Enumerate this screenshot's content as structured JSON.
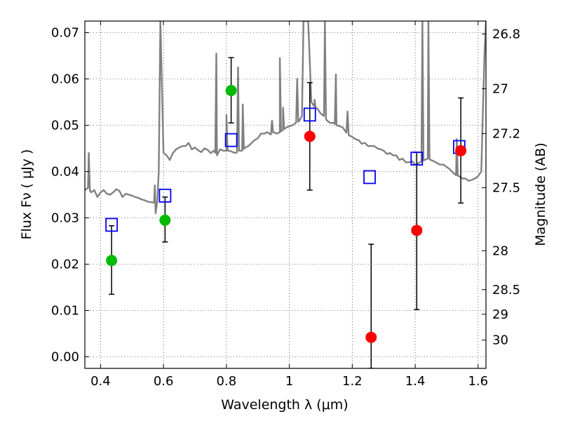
{
  "chart_data": {
    "type": "scatter",
    "xlabel": "Wavelength  λ (μm)",
    "ylabel": "Flux  Fν  ( μJy )",
    "ylabel_right": "Magnitude (AB)",
    "xlim": [
      0.35,
      1.625
    ],
    "ylim": [
      -0.0025,
      0.0725
    ],
    "grid": true,
    "x_ticks": [
      0.4,
      0.6,
      0.8,
      1.0,
      1.2,
      1.4,
      1.6
    ],
    "x_tick_labels": [
      "0.4",
      "0.6",
      "0.8",
      "1",
      "1.2",
      "1.4",
      "1.6"
    ],
    "y_ticks": [
      0.0,
      0.01,
      0.02,
      0.03,
      0.04,
      0.05,
      0.06,
      0.07
    ],
    "y_tick_labels": [
      "0.00",
      "0.01",
      "0.02",
      "0.03",
      "0.04",
      "0.05",
      "0.06",
      "0.07"
    ],
    "right_ticks": [
      {
        "label": "26.8",
        "flux": 0.0697
      },
      {
        "label": "27",
        "flux": 0.0579
      },
      {
        "label": "27.2",
        "flux": 0.0482
      },
      {
        "label": "27.5",
        "flux": 0.0365
      },
      {
        "label": "28",
        "flux": 0.0229
      },
      {
        "label": "28.5",
        "flux": 0.0145
      },
      {
        "label": "29",
        "flux": 0.0092
      },
      {
        "label": "30",
        "flux": 0.0036
      }
    ],
    "series": [
      {
        "kind": "spectrum",
        "color": "#808080",
        "x": [
          0.35,
          0.36,
          0.37,
          0.38,
          0.39,
          0.4,
          0.41,
          0.42,
          0.43,
          0.44,
          0.45,
          0.46,
          0.47,
          0.48,
          0.49,
          0.5,
          0.51,
          0.52,
          0.53,
          0.54,
          0.55,
          0.56,
          0.57,
          0.575,
          0.58,
          0.585,
          0.59,
          0.6,
          0.61,
          0.62,
          0.63,
          0.64,
          0.65,
          0.66,
          0.67,
          0.68,
          0.69,
          0.7,
          0.71,
          0.72,
          0.73,
          0.74,
          0.75,
          0.76,
          0.77,
          0.78,
          0.79,
          0.8,
          0.81,
          0.82,
          0.83,
          0.84,
          0.85,
          0.86,
          0.87,
          0.88,
          0.89,
          0.9,
          0.91,
          0.92,
          0.93,
          0.94,
          0.95,
          0.96,
          0.97,
          0.98,
          0.99,
          1.0,
          1.01,
          1.02,
          1.03,
          1.04,
          1.045,
          1.05,
          1.055,
          1.06,
          1.07,
          1.08,
          1.09,
          1.1,
          1.11,
          1.12,
          1.13,
          1.14,
          1.15,
          1.16,
          1.17,
          1.18,
          1.19,
          1.2,
          1.21,
          1.22,
          1.23,
          1.24,
          1.25,
          1.26,
          1.27,
          1.28,
          1.29,
          1.3,
          1.31,
          1.32,
          1.33,
          1.34,
          1.35,
          1.36,
          1.37,
          1.38,
          1.39,
          1.4,
          1.41,
          1.42,
          1.43,
          1.44,
          1.45,
          1.46,
          1.47,
          1.48,
          1.49,
          1.5,
          1.51,
          1.52,
          1.53,
          1.54,
          1.55,
          1.56,
          1.57,
          1.58,
          1.59,
          1.6,
          1.61,
          1.62,
          1.625
        ],
        "y": [
          0.036,
          0.0365,
          0.0355,
          0.036,
          0.0345,
          0.0355,
          0.036,
          0.0352,
          0.035,
          0.0355,
          0.0362,
          0.0358,
          0.0345,
          0.0352,
          0.035,
          0.0348,
          0.0345,
          0.0343,
          0.034,
          0.0338,
          0.0335,
          0.0334,
          0.0333,
          0.031,
          0.0335,
          0.04,
          0.0725,
          0.044,
          0.0435,
          0.0425,
          0.044,
          0.0448,
          0.0452,
          0.0455,
          0.0455,
          0.0462,
          0.0448,
          0.0452,
          0.0446,
          0.0442,
          0.045,
          0.0447,
          0.044,
          0.0445,
          0.0435,
          0.0448,
          0.0445,
          0.0445,
          0.0445,
          0.0442,
          0.044,
          0.0445,
          0.0445,
          0.0452,
          0.0455,
          0.0462,
          0.0468,
          0.0472,
          0.0482,
          0.0482,
          0.0485,
          0.048,
          0.0485,
          0.0482,
          0.0485,
          0.049,
          0.0495,
          0.0498,
          0.05,
          0.0505,
          0.0508,
          0.052,
          0.0725,
          0.0725,
          0.0725,
          0.0725,
          0.055,
          0.054,
          0.0535,
          0.0525,
          0.052,
          0.051,
          0.0505,
          0.0505,
          0.05,
          0.0498,
          0.0495,
          0.0485,
          0.0478,
          0.0475,
          0.047,
          0.0468,
          0.046,
          0.0462,
          0.0455,
          0.0455,
          0.0455,
          0.045,
          0.0448,
          0.0445,
          0.0438,
          0.044,
          0.0435,
          0.0435,
          0.0425,
          0.0428,
          0.042,
          0.042,
          0.0422,
          0.0415,
          0.0418,
          0.0422,
          0.0425,
          0.0428,
          0.0425,
          0.0422,
          0.0418,
          0.0415,
          0.0415,
          0.041,
          0.0405,
          0.0398,
          0.0392,
          0.039,
          0.0385,
          0.0385,
          0.038,
          0.0382,
          0.0385,
          0.039,
          0.04,
          0.065,
          0.0725
        ],
        "peaks": [
          [
            0.3625,
            0.044
          ],
          [
            0.5725,
            0.037
          ],
          [
            0.768,
            0.0655
          ],
          [
            0.8,
            0.0522
          ],
          [
            0.837,
            0.0625
          ],
          [
            0.852,
            0.0545
          ],
          [
            0.945,
            0.051
          ],
          [
            0.97,
            0.0645
          ],
          [
            0.98,
            0.0538
          ],
          [
            1.025,
            0.06
          ],
          [
            1.08,
            0.0555
          ],
          [
            1.113,
            0.0725
          ],
          [
            1.148,
            0.061
          ],
          [
            1.185,
            0.053
          ],
          [
            1.423,
            0.0725
          ],
          [
            1.442,
            0.0725
          ],
          [
            1.532,
            0.047
          ]
        ]
      },
      {
        "name": "",
        "kind": "model",
        "marker": "open-square",
        "color": "#0000ff",
        "x": [
          0.435,
          0.605,
          0.815,
          1.065,
          1.255,
          1.405,
          1.54
        ],
        "y": [
          0.0285,
          0.0348,
          0.0468,
          0.0523,
          0.0388,
          0.0428,
          0.0453
        ]
      },
      {
        "name": "",
        "kind": "measured",
        "marker": "filled-circle",
        "color": "#00bb00",
        "x": [
          0.435,
          0.605,
          0.815
        ],
        "y": [
          0.0208,
          0.0295,
          0.0575
        ],
        "yerr": [
          [
            0.0135,
            0.0283
          ],
          [
            0.0248,
            0.0345
          ],
          [
            0.0505,
            0.0646
          ]
        ]
      },
      {
        "name": "",
        "kind": "measured",
        "marker": "filled-circle",
        "color": "#ff0000",
        "x": [
          1.065,
          1.26,
          1.405,
          1.545
        ],
        "y": [
          0.0476,
          0.0042,
          0.0273,
          0.0445
        ],
        "yerr": [
          [
            0.036,
            0.0592
          ],
          [
            -0.0025,
            0.0243
          ],
          [
            0.0102,
            0.0442
          ],
          [
            0.0332,
            0.0559
          ]
        ]
      }
    ]
  }
}
